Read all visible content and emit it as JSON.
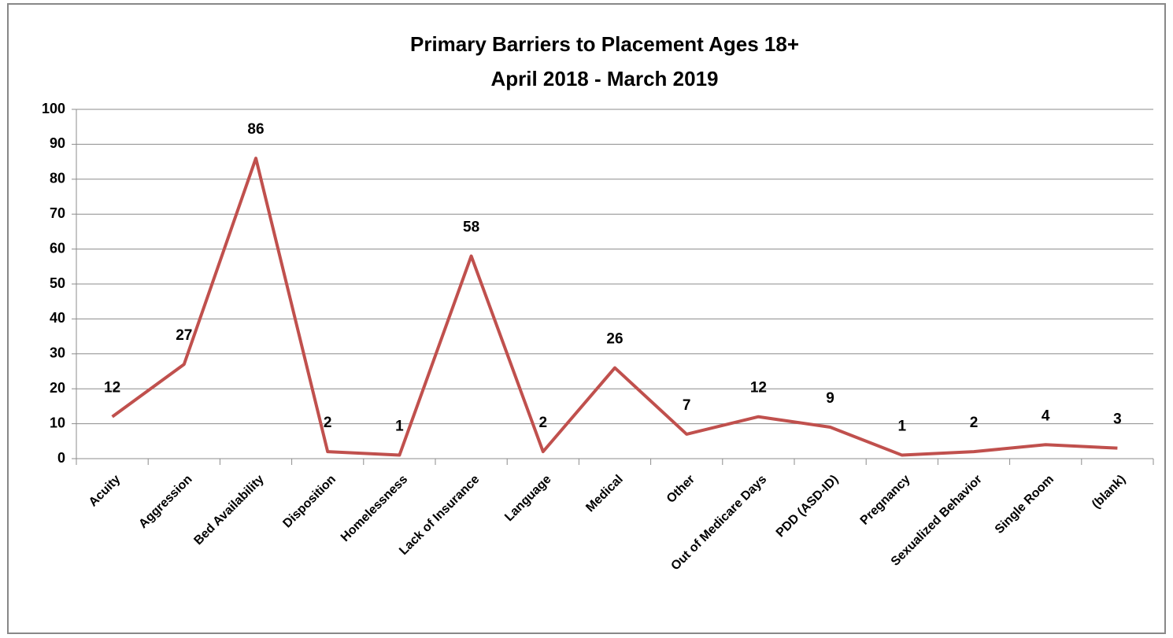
{
  "chart_data": {
    "type": "line",
    "title": "Primary Barriers to Placement Ages 18+",
    "subtitle": "April 2018 - March 2019",
    "categories": [
      "Acuity",
      "Aggression",
      "Bed Availability",
      "Disposition",
      "Homelessness",
      "Lack of Insurance",
      "Language",
      "Medical",
      "Other",
      "Out of Medicare Days",
      "PDD (ASD-ID)",
      "Pregnancy",
      "Sexualized Behavior",
      "Single Room",
      "(blank)"
    ],
    "values": [
      12,
      27,
      86,
      2,
      1,
      58,
      2,
      26,
      7,
      12,
      9,
      1,
      2,
      4,
      3
    ],
    "color": "#c0504d",
    "ylim": [
      0,
      100
    ],
    "yticks": [
      0,
      10,
      20,
      30,
      40,
      50,
      60,
      70,
      80,
      90,
      100
    ],
    "grid": true
  }
}
